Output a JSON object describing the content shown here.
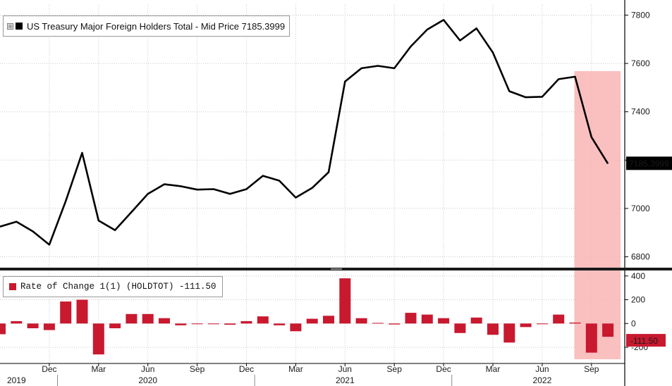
{
  "colors": {
    "price_line": "#000000",
    "bar": "#c8192f",
    "highlight": "#f9b4b4",
    "price_tag_bg": "#000000",
    "roc_tag_bg": "#c8192f"
  },
  "legend": {
    "main": "US Treasury Major Foreign Holders Total - Mid Price 7185.3999",
    "roc": "Rate of Change 1(1) (HOLDTOT) -111.50",
    "expand_icon": "⊞"
  },
  "tags": {
    "price": "7185.3999",
    "roc": "-111.50"
  },
  "chart_data": [
    {
      "type": "line",
      "series": [
        {
          "name": "US Treasury Major Foreign Holders Total - Mid Price",
          "x": [
            "2019-09",
            "2019-10",
            "2019-11",
            "2019-12",
            "2020-01",
            "2020-02",
            "2020-03",
            "2020-04",
            "2020-05",
            "2020-06",
            "2020-07",
            "2020-08",
            "2020-09",
            "2020-10",
            "2020-11",
            "2020-12",
            "2021-01",
            "2021-02",
            "2021-03",
            "2021-04",
            "2021-05",
            "2021-06",
            "2021-07",
            "2021-08",
            "2021-09",
            "2021-10",
            "2021-11",
            "2021-12",
            "2022-01",
            "2022-02",
            "2022-03",
            "2022-04",
            "2022-05",
            "2022-06",
            "2022-07",
            "2022-08",
            "2022-09",
            "2022-10"
          ],
          "values": [
            6925,
            6945,
            6905,
            6850,
            7030,
            7230,
            6950,
            6910,
            6985,
            7060,
            7100,
            7092,
            7078,
            7080,
            7060,
            7080,
            7135,
            7115,
            7045,
            7085,
            7150,
            7525,
            7580,
            7590,
            7580,
            7670,
            7740,
            7780,
            7695,
            7745,
            7645,
            7485,
            7460,
            7462,
            7535,
            7545,
            7295,
            7185.3999
          ]
        }
      ],
      "yticks": [
        6800,
        7000,
        7200,
        7400,
        7600,
        7800
      ],
      "ytick_labels": [
        "6800",
        "7000",
        "",
        "7400",
        "7600",
        "7800"
      ],
      "ylim": [
        6755,
        7845
      ]
    },
    {
      "type": "bar",
      "series": [
        {
          "name": "Rate of Change 1(1) (HOLDTOT)",
          "values": [
            -90,
            20,
            -40,
            -55,
            185,
            200,
            -260,
            -40,
            80,
            80,
            45,
            -15,
            -5,
            -2,
            -10,
            20,
            60,
            -15,
            -65,
            40,
            65,
            380,
            45,
            5,
            -8,
            90,
            75,
            45,
            -80,
            50,
            -95,
            -160,
            -30,
            0,
            75,
            8,
            -245,
            -111.5
          ]
        }
      ],
      "yticks": [
        -200,
        0,
        200,
        400
      ],
      "ytick_labels": [
        "-200",
        "0",
        "200",
        "400"
      ],
      "ylim": [
        -330,
        440
      ]
    }
  ],
  "x_axis": {
    "month_ticks": [
      {
        "month": "2019-12",
        "label": "Dec"
      },
      {
        "month": "2020-03",
        "label": "Mar"
      },
      {
        "month": "2020-06",
        "label": "Jun"
      },
      {
        "month": "2020-09",
        "label": "Sep"
      },
      {
        "month": "2020-12",
        "label": "Dec"
      },
      {
        "month": "2021-03",
        "label": "Mar"
      },
      {
        "month": "2021-06",
        "label": "Jun"
      },
      {
        "month": "2021-09",
        "label": "Sep"
      },
      {
        "month": "2021-12",
        "label": "Dec"
      },
      {
        "month": "2022-03",
        "label": "Mar"
      },
      {
        "month": "2022-06",
        "label": "Jun"
      },
      {
        "month": "2022-09",
        "label": "Sep"
      }
    ],
    "year_ticks": [
      {
        "month": "2019-10",
        "label": "2019"
      },
      {
        "month": "2020-06",
        "label": "2020"
      },
      {
        "month": "2021-06",
        "label": "2021"
      },
      {
        "month": "2022-06",
        "label": "2022"
      }
    ],
    "year_dividers": [
      "2019-12.5",
      "2020-12.5",
      "2021-12.5"
    ]
  },
  "highlight_range": {
    "from": "2022-08",
    "to": "2022-10"
  }
}
